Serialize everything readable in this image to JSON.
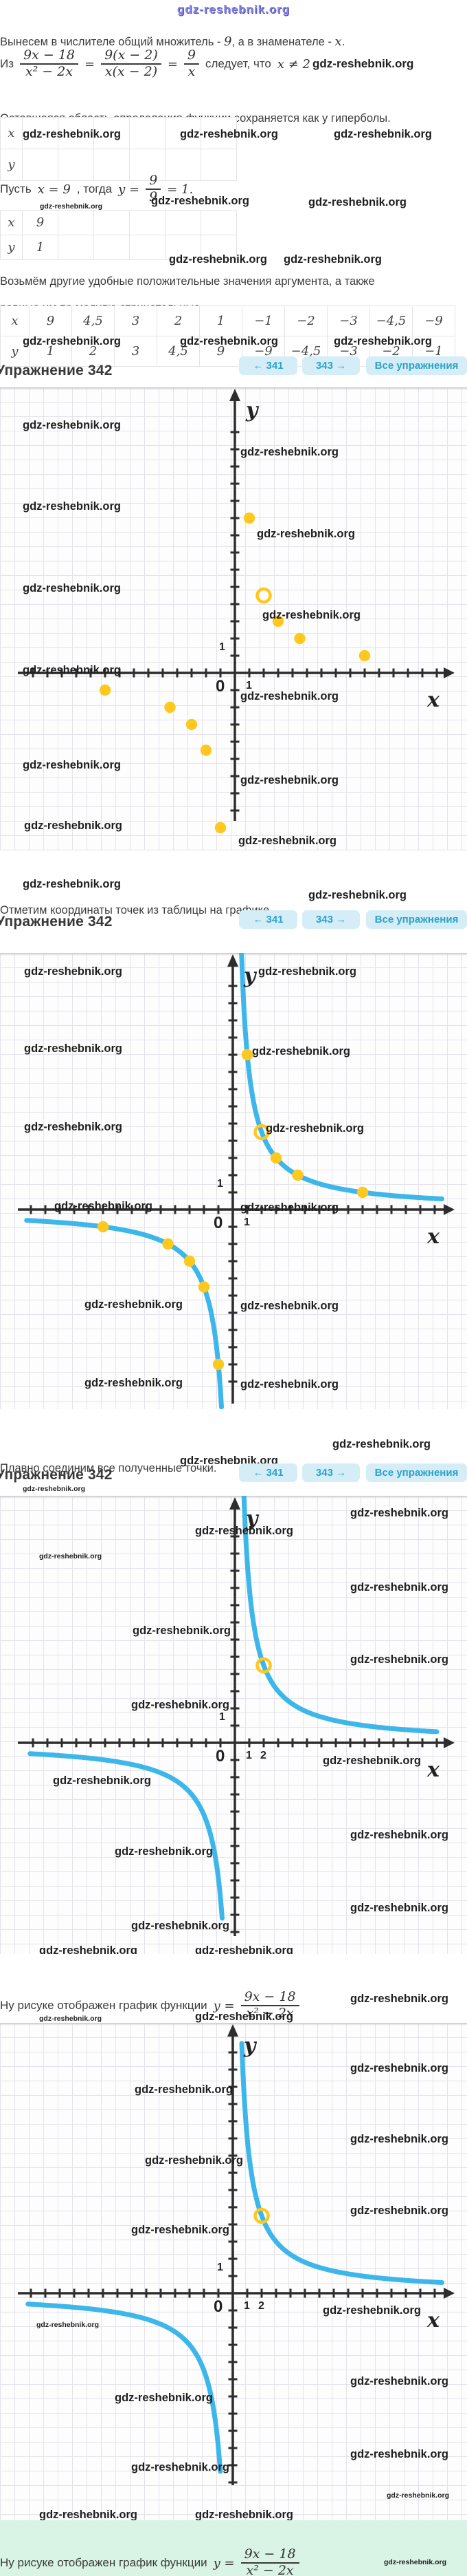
{
  "site_watermark": "gdz-reshebnik.org",
  "colors": {
    "curve_blue": "#3db6ea",
    "point_yellow": "#ffc81e",
    "axis": "#2d2d2d",
    "nav_bg": "#d5edf6",
    "nav_text": "#2aa3cb",
    "banner_bg": "#d9f3e5",
    "watermark_site": "#8585dc"
  },
  "intro": {
    "factor_line": {
      "pre": "Вынесем в числителе общий множитель - ",
      "nine": "9",
      "mid": ", а в знаменателе - ",
      "x": "x",
      "end": "."
    },
    "derivation": {
      "iz": "Из",
      "frac1": {
        "num": "9x − 18",
        "den": "x² − 2x"
      },
      "eq1": "=",
      "frac2": {
        "num": "9(x − 2)",
        "den": "x(x − 2)"
      },
      "eq2": "=",
      "frac3": {
        "num": "9",
        "den": "x"
      },
      "conclusion": "следует, что",
      "constraint": "x ≠ 2"
    },
    "domain_line": "Оставшаяся область определения функции сохраняется как у гиперболы."
  },
  "example_line": {
    "pre": "Пусть ",
    "x_eq": "x = 9",
    "mid": ", тогда ",
    "y_eq": "y =",
    "frac": {
      "num": "9",
      "den": "9"
    },
    "eq": "= 1."
  },
  "paragraphs": {
    "more_values_1": "Возьмём другие удобные положительные значения аргумента, а также",
    "more_values_2": "равные им по модулю отрицательные."
  },
  "tables": {
    "empty": {
      "x_label": "x",
      "y_label": "y"
    },
    "single": {
      "x_label": "x",
      "x_value": "9",
      "y_label": "y",
      "y_value": "1"
    },
    "values": {
      "x_label": "x",
      "y_label": "y",
      "x": [
        "9",
        "4,5",
        "3",
        "2",
        "1",
        "−1",
        "−2",
        "−3",
        "−4,5",
        "−9"
      ],
      "y": [
        "1",
        "2",
        "3",
        "4,5",
        "9",
        "−9",
        "−4,5",
        "−3",
        "−2",
        "−1"
      ]
    }
  },
  "exercise_header": {
    "title": "Упражнение 342",
    "prev": "← 341",
    "next": "343 →",
    "all": "Все упражнения"
  },
  "captions": {
    "plot_points": "Отметим координаты точек из таблицы на графике.",
    "connect": "Плавно соединим все полученные точки.",
    "result": {
      "pre": "Ну рисуке отображен график функции ",
      "y_eq": "y =",
      "frac": {
        "num": "9x − 18",
        "den": "x² − 2x"
      }
    }
  },
  "chart_data": [
    {
      "id": "plotted-points",
      "type": "scatter",
      "xlabel": "x",
      "ylabel": "y",
      "origin_label": "0",
      "x_number_labels": [
        {
          "value": 1,
          "label": "1"
        }
      ],
      "y_number_labels": [
        {
          "value": 1,
          "label": "1"
        }
      ],
      "points": [
        [
          1,
          9
        ],
        [
          3,
          3
        ],
        [
          4.5,
          2
        ],
        [
          9,
          1
        ],
        [
          -1,
          -9
        ],
        [
          -2,
          -4.5
        ],
        [
          -3,
          -3
        ],
        [
          -4.5,
          -2
        ],
        [
          -9,
          -1
        ]
      ],
      "excluded_point": [
        2,
        4.5
      ],
      "curve": null,
      "xlim": [
        -16,
        16
      ],
      "ylim": [
        -10,
        17
      ],
      "grid": true
    },
    {
      "id": "points-with-curve",
      "type": "line+scatter",
      "xlabel": "x",
      "ylabel": "y",
      "origin_label": "0",
      "x_number_labels": [
        {
          "value": 1,
          "label": "1"
        }
      ],
      "y_number_labels": [
        {
          "value": 1,
          "label": "1"
        }
      ],
      "points": [
        [
          1,
          9
        ],
        [
          3,
          3
        ],
        [
          4.5,
          2
        ],
        [
          9,
          1
        ],
        [
          -1,
          -9
        ],
        [
          -2,
          -4.5
        ],
        [
          -3,
          -3
        ],
        [
          -4.5,
          -2
        ],
        [
          -9,
          -1
        ]
      ],
      "excluded_point": [
        2,
        4.5
      ],
      "curve": {
        "function": "y = 9/x",
        "k": 9
      },
      "xlim": [
        -16,
        16
      ],
      "ylim": [
        -12,
        15
      ],
      "grid": true
    },
    {
      "id": "smooth-hyperbola",
      "type": "line",
      "xlabel": "x",
      "ylabel": "y",
      "origin_label": "0",
      "x_number_labels": [
        {
          "value": 1,
          "label": "1"
        },
        {
          "value": 2,
          "label": "2"
        }
      ],
      "y_number_labels": [
        {
          "value": 1,
          "label": "1"
        }
      ],
      "points": [],
      "excluded_point": [
        2,
        4.5
      ],
      "curve": {
        "function": "y = 9/x",
        "k": 9
      },
      "xlim": [
        -16,
        16
      ],
      "ylim": [
        -12,
        14
      ],
      "grid": true
    },
    {
      "id": "final-graph",
      "type": "line",
      "xlabel": "x",
      "ylabel": "y",
      "origin_label": "0",
      "x_number_labels": [
        {
          "value": 1,
          "label": "1"
        },
        {
          "value": 2,
          "label": "2"
        }
      ],
      "y_number_labels": [
        {
          "value": 1,
          "label": "1"
        }
      ],
      "points": [],
      "excluded_point": [
        2,
        4.5
      ],
      "curve": {
        "function": "y = 9/x",
        "k": 9
      },
      "xlim": [
        -16,
        16
      ],
      "ylim": [
        -13,
        16
      ],
      "grid": true
    }
  ]
}
